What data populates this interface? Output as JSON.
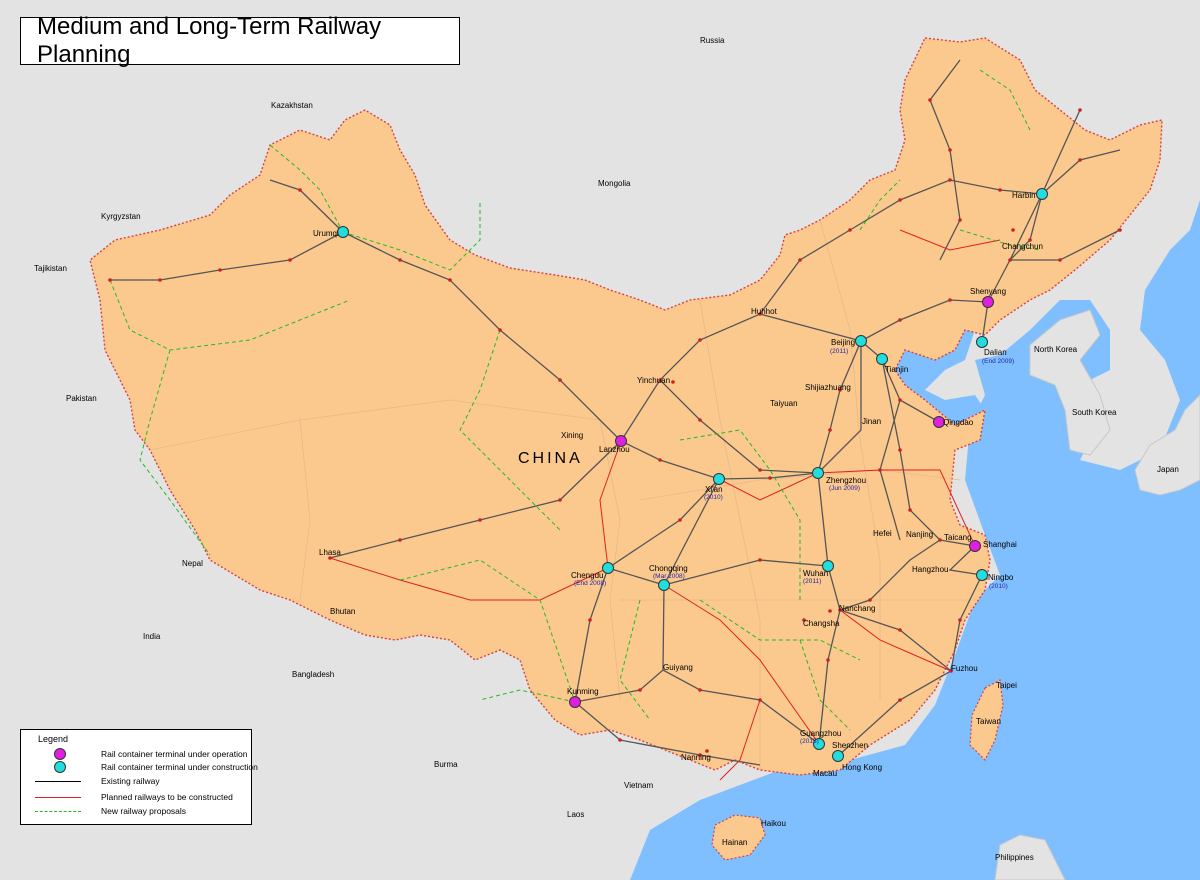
{
  "title": "Medium and Long-Term Railway Planning",
  "colors": {
    "land_china": "#fbc98e",
    "land_other": "#e3e3e3",
    "sea": "#80bfff",
    "border": "#c8c8c8",
    "existing_railway": "#555555",
    "planned_railway": "#e02020",
    "proposal": "#22bb22",
    "terminal_operating": "#e020e0",
    "terminal_construction": "#22dddd",
    "city_dot": "#cc2222",
    "year_note": "#2222aa"
  },
  "countries": {
    "china": "CHINA",
    "neighbours": [
      "Russia",
      "Kazakhstan",
      "Mongolia",
      "Kyrgyzstan",
      "Tajikistan",
      "Pakistan",
      "Nepal",
      "Bhutan",
      "India",
      "Bangladesh",
      "Burma",
      "Laos",
      "Vietnam",
      "North Korea",
      "South Korea",
      "Japan",
      "Philippines"
    ]
  },
  "cities": {
    "urumqi": "Urumqi",
    "lanzhou": "Lanzhou",
    "xining": "Xining",
    "lhasa": "Lhasa",
    "yinchuan": "Yinchuan",
    "huhhot": "Huhhot",
    "beijing": "Beijing",
    "tianjin": "Tianjin",
    "shijiazhuang": "Shijiazhuang",
    "taiyuan": "Taiyuan",
    "jinan": "Jinan",
    "qingdao": "Qingdao",
    "harbin": "Harbin",
    "changchun": "Changchun",
    "shenyang": "Shenyang",
    "dalian": "Dalian",
    "xian": "Xi'an",
    "zhengzhou": "Zhengzhou",
    "hefei": "Hefei",
    "nanjing": "Nanjing",
    "taicang": "Taicang",
    "shanghai": "Shanghai",
    "hangzhou": "Hangzhou",
    "ningbo": "Ningbo",
    "wuhan": "Wuhan",
    "nanchang": "Nanchang",
    "changsha": "Changsha",
    "fuzhou": "Fuzhou",
    "chengdu": "Chengdu",
    "chongqing": "Chongqing",
    "guiyang": "Guiyang",
    "kunming": "Kunming",
    "nanning": "Nanning",
    "guangzhou": "Guangzhou",
    "shenzhen": "Shenzhen",
    "macau": "Macau",
    "hongkong": "Hong Kong",
    "haikou": "Haikou",
    "hainan": "Hainan",
    "taipei": "Taipei",
    "taiwan": "Taiwan"
  },
  "year_notes": {
    "beijing": "(2011)",
    "dalian": "(End 2009)",
    "xian": "(2010)",
    "zhengzhou": "(Jun 2009)",
    "chengdu": "(End 2008)",
    "chongqing": "(Mar 2008)",
    "wuhan": "(2011)",
    "ningbo": "(2010)",
    "guangzhou": "(2015)"
  },
  "terminals": {
    "operating": [
      "Lanzhou",
      "Qingdao",
      "Shenyang",
      "Shanghai",
      "Kunming"
    ],
    "construction": [
      "Urumqi",
      "Beijing",
      "Tianjin",
      "Dalian",
      "Harbin",
      "Xi'an",
      "Zhengzhou",
      "Chengdu",
      "Chongqing",
      "Wuhan",
      "Ningbo",
      "Guangzhou",
      "Shenzhen"
    ]
  },
  "legend": {
    "title": "Legend",
    "operating": "Rail container terminal under operation",
    "construction": "Rail container terminal under construction",
    "existing": "Existing railway",
    "planned": "Planned railways to be constructed",
    "proposals": "New railway proposals"
  }
}
